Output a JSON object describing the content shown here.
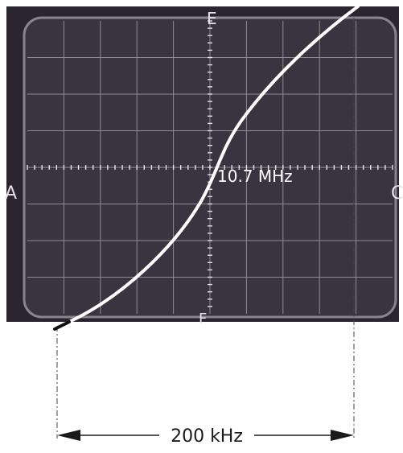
{
  "figure": {
    "center_label": "10.7 MHz",
    "span_label": "200 kHz",
    "edge_letters": {
      "top": "E",
      "bottom": "F",
      "left": "A",
      "right": "C"
    }
  },
  "colors": {
    "screen": "#3a3440",
    "graticule": "#d8d0d8",
    "trace": "#ffffff",
    "paper": "#ffffff",
    "ink": "#1a1a1a"
  }
}
